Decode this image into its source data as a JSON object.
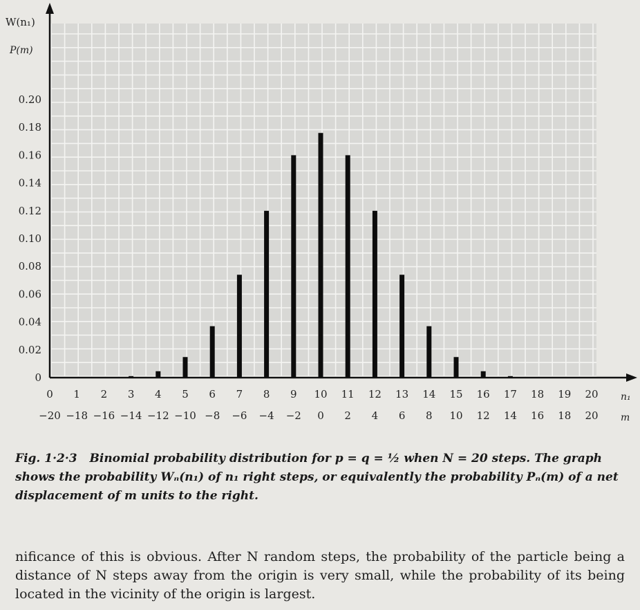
{
  "chart_data": {
    "type": "bar",
    "ylabels": [
      "W(n₁)",
      "P(m)"
    ],
    "x_axis_labels": [
      "n₁",
      "m"
    ],
    "n1_ticks": [
      "0",
      "1",
      "2",
      "3",
      "4",
      "5",
      "6",
      "7",
      "8",
      "9",
      "10",
      "11",
      "12",
      "13",
      "14",
      "15",
      "16",
      "17",
      "18",
      "19",
      "20"
    ],
    "m_ticks": [
      "−20",
      "−18",
      "−16",
      "−14",
      "−12",
      "−10",
      "−8",
      "−6",
      "−4",
      "−2",
      "0",
      "2",
      "4",
      "6",
      "8",
      "10",
      "12",
      "14",
      "16",
      "18",
      "20"
    ],
    "y_ticks": [
      "0",
      "0.02",
      "0.04",
      "0.06",
      "0.08",
      "0.10",
      "0.12",
      "0.14",
      "0.16",
      "0.18",
      "0.20"
    ],
    "x": [
      0,
      1,
      2,
      3,
      4,
      5,
      6,
      7,
      8,
      9,
      10,
      11,
      12,
      13,
      14,
      15,
      16,
      17,
      18,
      19,
      20
    ],
    "values": [
      1e-06,
      2e-05,
      0.0002,
      0.0011,
      0.0046,
      0.0148,
      0.037,
      0.074,
      0.12,
      0.16,
      0.176,
      0.16,
      0.12,
      0.074,
      0.037,
      0.0148,
      0.0046,
      0.0011,
      0.0002,
      2e-05,
      1e-06
    ],
    "ylim": [
      0,
      0.22
    ],
    "xlim": [
      0,
      20
    ],
    "grid": true
  },
  "caption": {
    "fig_label": "Fig. 1·2·3",
    "text": "Binomial probability distribution for p = q = ½ when N = 20 steps. The graph shows the probability Wₙ(n₁) of n₁ right steps, or equivalently the probability Pₙ(m) of a net displacement of m units to the right."
  },
  "body_text": "nificance of this is obvious. After N random steps, the probability of the particle being a distance of N steps away from the origin is very small, while the probability of its being located in the vicinity of the origin is largest."
}
